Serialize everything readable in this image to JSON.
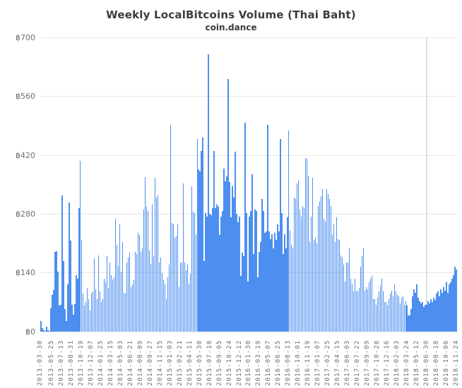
{
  "title": "Weekly LocalBitcoins Volume (Thai Baht)",
  "subtitle": "coin.dance",
  "colors": {
    "bar": "#4d8ff0",
    "grid": "#e6e6e6",
    "vertical_grid": "#e0e0e0",
    "axis_text": "#6e6e6e",
    "title_text": "#3c3c3c",
    "background": "#ffffff"
  },
  "chart_data": {
    "type": "bar",
    "title": "Weekly LocalBitcoins Volume (Thai Baht)",
    "subtitle": "coin.dance",
    "currency_prefix": "฿",
    "ylim": [
      0,
      700
    ],
    "yticks": [
      0,
      140,
      280,
      420,
      560,
      700
    ],
    "ytick_labels": [
      "฿0",
      "฿140",
      "฿280",
      "฿420",
      "฿560",
      "฿700"
    ],
    "grid": "horizontal",
    "legend": "none",
    "x_interval": "weekly",
    "x_first_date": "2013-03-30",
    "x_last_date": "2018-11-24",
    "vline_label": "2018-06-30",
    "xtick_weeks": [
      0,
      8,
      15,
      22,
      29,
      36,
      43,
      50,
      57,
      64,
      71,
      78,
      85,
      92,
      99,
      106,
      113,
      120,
      127,
      134,
      141,
      148,
      155,
      162,
      169,
      176,
      183,
      190,
      197,
      204,
      211,
      218,
      225,
      232,
      239,
      246,
      253,
      260,
      267,
      274,
      281,
      288,
      295
    ],
    "xtick_labels": [
      "2013-03-30",
      "2013-05-25",
      "2013-07-13",
      "2013-08-31",
      "2013-10-19",
      "2013-12-07",
      "2014-01-25",
      "2014-03-15",
      "2014-05-03",
      "2014-06-21",
      "2014-08-09",
      "2014-09-27",
      "2014-11-15",
      "2015-01-03",
      "2015-02-21",
      "2015-04-11",
      "2015-05-30",
      "2015-07-18",
      "2015-09-05",
      "2015-10-24",
      "2015-12-12",
      "2016-01-30",
      "2016-03-19",
      "2016-05-07",
      "2016-06-25",
      "2016-08-13",
      "2016-10-01",
      "2016-11-19",
      "2017-01-07",
      "2017-02-25",
      "2017-04-15",
      "2017-06-03",
      "2017-07-22",
      "2017-09-09",
      "2017-10-28",
      "2017-12-16",
      "2018-02-03",
      "2018-03-24",
      "2018-05-12",
      "2018-06-30",
      "2018-08-18",
      "2018-10-06",
      "2018-11-24"
    ],
    "values": [
      25,
      9,
      3,
      2,
      12,
      4,
      2,
      55,
      87,
      100,
      190,
      192,
      143,
      62,
      64,
      325,
      168,
      53,
      25,
      112,
      308,
      216,
      64,
      40,
      65,
      134,
      126,
      294,
      406,
      218,
      90,
      62,
      70,
      104,
      77,
      50,
      90,
      95,
      174,
      101,
      78,
      182,
      95,
      70,
      78,
      126,
      118,
      179,
      104,
      165,
      135,
      125,
      129,
      269,
      207,
      157,
      255,
      143,
      213,
      92,
      90,
      165,
      176,
      188,
      106,
      112,
      123,
      190,
      185,
      235,
      230,
      190,
      199,
      291,
      368,
      297,
      288,
      193,
      162,
      302,
      179,
      367,
      319,
      325,
      165,
      176,
      140,
      123,
      115,
      78,
      129,
      160,
      493,
      258,
      255,
      224,
      227,
      255,
      106,
      165,
      165,
      353,
      165,
      146,
      160,
      115,
      137,
      347,
      286,
      283,
      232,
      459,
      386,
      381,
      431,
      462,
      168,
      283,
      274,
      660,
      280,
      277,
      294,
      431,
      294,
      302,
      297,
      230,
      274,
      288,
      389,
      358,
      370,
      602,
      356,
      272,
      347,
      319,
      428,
      280,
      260,
      274,
      132,
      188,
      179,
      498,
      283,
      120,
      274,
      288,
      375,
      185,
      291,
      288,
      129,
      190,
      213,
      316,
      288,
      235,
      238,
      493,
      238,
      221,
      232,
      199,
      235,
      218,
      255,
      238,
      459,
      283,
      185,
      232,
      199,
      272,
      479,
      241,
      207,
      199,
      319,
      316,
      353,
      360,
      291,
      274,
      300,
      294,
      414,
      412,
      370,
      213,
      274,
      367,
      218,
      224,
      210,
      300,
      311,
      322,
      339,
      269,
      263,
      339,
      328,
      316,
      300,
      230,
      255,
      213,
      272,
      221,
      218,
      182,
      176,
      160,
      120,
      165,
      165,
      198,
      126,
      112,
      95,
      126,
      98,
      95,
      104,
      154,
      179,
      199,
      98,
      106,
      101,
      118,
      126,
      132,
      78,
      78,
      64,
      81,
      95,
      109,
      126,
      95,
      70,
      70,
      62,
      78,
      90,
      98,
      84,
      112,
      95,
      87,
      84,
      67,
      81,
      84,
      64,
      73,
      62,
      39,
      39,
      53,
      84,
      101,
      92,
      112,
      81,
      73,
      67,
      70,
      59,
      64,
      64,
      73,
      67,
      78,
      70,
      81,
      76,
      90,
      95,
      84,
      101,
      92,
      106,
      98,
      118,
      92,
      112,
      118,
      126,
      134,
      154,
      148
    ]
  }
}
